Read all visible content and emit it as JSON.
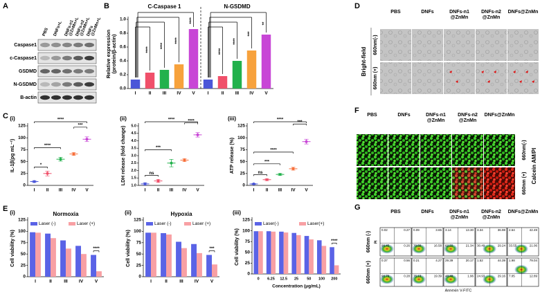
{
  "panel_labels": [
    "A",
    "B",
    "C",
    "D",
    "E",
    "F",
    "G"
  ],
  "blot": {
    "columns": [
      [
        "PBS"
      ],
      [
        "DNFs+L"
      ],
      [
        "DNFs-n1",
        "@ZnMn+L"
      ],
      [
        "DNFs-n2",
        "@ZnMn+L"
      ],
      [
        "DNFs",
        "@ZnMn+L"
      ]
    ],
    "rows": [
      "Caspase1",
      "c-Caspase1",
      "GSDMD",
      "N-GSDMD",
      "B-actin"
    ]
  },
  "chart_data": [
    {
      "type": "bar",
      "categories": [
        "I",
        "II",
        "III",
        "IV",
        "V"
      ],
      "colors": [
        "#4a56d8",
        "#f0506a",
        "#22b14c",
        "#f7a23c",
        "#c846d6"
      ],
      "ylabel": [
        "Relative expression",
        "(protein/β-actin)"
      ],
      "ylim": [
        0,
        1
      ],
      "yticks": [
        {
          "value": 0,
          "label": "0.0"
        },
        0.2,
        0.4,
        0.6,
        0.8,
        {
          "value": 1,
          "label": "1.0"
        }
      ],
      "groups": [
        {
          "title": "C-Caspase 1",
          "values": [
            0.13,
            0.23,
            0.27,
            0.35,
            0.86
          ],
          "annotations": [
            "****",
            "****",
            "****",
            "****"
          ]
        },
        {
          "title": "N-GSDMD",
          "values": [
            0.13,
            0.18,
            0.4,
            0.55,
            0.78
          ],
          "annotations": [
            "****",
            "****",
            "***",
            "**"
          ]
        }
      ]
    },
    {
      "type": "dot",
      "sublabel": "(i)",
      "ylabel": "IL-1β(pg mL⁻¹)",
      "categories": [
        "I",
        "II",
        "III",
        "IV",
        "V"
      ],
      "colors": [
        "#4a56d8",
        "#f0506a",
        "#22b14c",
        "#f7703c",
        "#c846d6"
      ],
      "values": [
        8,
        25,
        55,
        66,
        97
      ],
      "errors": [
        2,
        5,
        4,
        3,
        5
      ],
      "ylim": [
        0,
        125
      ],
      "yticks": [
        0,
        25,
        50,
        75,
        100,
        125
      ],
      "annotations": [
        "*",
        "****",
        "****",
        "***"
      ]
    },
    {
      "type": "dot",
      "sublabel": "(ii)",
      "ylabel": "LDH release (fold change)",
      "categories": [
        "I",
        "II",
        "III",
        "IV",
        "V"
      ],
      "colors": [
        "#4a56d8",
        "#f0506a",
        "#22b14c",
        "#f7703c",
        "#c846d6"
      ],
      "values": [
        1.1,
        1.3,
        2.5,
        2.7,
        4.4
      ],
      "errors": [
        0.08,
        0.1,
        0.25,
        0.1,
        0.15
      ],
      "ylim": [
        1,
        5
      ],
      "yticks": [
        {
          "value": 1,
          "label": "1.0"
        },
        1.5,
        {
          "value": 2,
          "label": "2.0"
        },
        2.5,
        {
          "value": 3,
          "label": "3.0"
        },
        3.5,
        {
          "value": 4,
          "label": "4.0"
        },
        4.5,
        {
          "value": 5,
          "label": "5.0"
        }
      ],
      "annotations": [
        "ns",
        "***",
        "****",
        "****"
      ]
    },
    {
      "type": "dot",
      "sublabel": "(iii)",
      "ylabel": "ATP release (%)",
      "categories": [
        "I",
        "II",
        "III",
        "IV",
        "V"
      ],
      "colors": [
        "#4a56d8",
        "#f0506a",
        "#22b14c",
        "#f7703c",
        "#c846d6"
      ],
      "values": [
        3,
        12,
        23,
        35,
        92
      ],
      "errors": [
        1,
        2,
        2,
        3,
        5
      ],
      "ylim": [
        0,
        125
      ],
      "yticks": [
        0,
        25,
        50,
        75,
        100,
        125
      ],
      "annotations": [
        "ns",
        "***",
        "****",
        "****",
        "***"
      ]
    },
    {
      "type": "grouped_bar",
      "sublabel": "(i)",
      "title": "Normoxia",
      "ylabel": "Cell viability (%)",
      "categories": [
        "I",
        "II",
        "III",
        "IV",
        "V"
      ],
      "series": [
        {
          "name": "Laser (-)",
          "color": "#5a63e6",
          "values": [
            98,
            95,
            80,
            68,
            48
          ]
        },
        {
          "name": "Laser (+)",
          "color": "#f8a0a4",
          "values": [
            97,
            85,
            62,
            50,
            12
          ]
        }
      ],
      "ylim": [
        0,
        125
      ],
      "yticks": [
        0,
        25,
        50,
        75,
        100,
        125
      ],
      "annotations": [
        "****"
      ]
    },
    {
      "type": "grouped_bar",
      "sublabel": "(ii)",
      "title": "Hypoxia",
      "ylabel": "Cell viability (%)",
      "categories": [
        "I",
        "II",
        "III",
        "IV",
        "V"
      ],
      "series": [
        {
          "name": "Laser (-)",
          "color": "#5a63e6",
          "values": [
            97,
            96,
            77,
            72,
            48
          ]
        },
        {
          "name": "Laser (+)",
          "color": "#f8a0a4",
          "values": [
            97,
            93,
            63,
            52,
            27
          ]
        }
      ],
      "ylim": [
        0,
        125
      ],
      "yticks": [
        0,
        25,
        50,
        75,
        100,
        125
      ],
      "annotations": [
        "***"
      ]
    },
    {
      "type": "grouped_bar",
      "sublabel": "(iii)",
      "ylabel": "Cell viability (%)",
      "xlabel": "Concentration (μg/mL)",
      "categories": [
        "0",
        "6.25",
        "12.5",
        "25",
        "50",
        "100",
        "200"
      ],
      "series": [
        {
          "name": "Laser(-)",
          "color": "#5a63e6",
          "values": [
            99,
            99,
            98,
            95,
            88,
            78,
            62
          ]
        },
        {
          "name": "Laser(+)",
          "color": "#f8a0a4",
          "values": [
            99,
            98,
            96,
            90,
            80,
            65,
            20
          ]
        }
      ],
      "ylim": [
        0,
        125
      ],
      "yticks": [
        0,
        25,
        50,
        75,
        100,
        125
      ],
      "annotations": [
        "****"
      ]
    }
  ],
  "bright_field": {
    "side_label": "Bright-field",
    "rows": [
      "660nm(-)",
      "660nm (+)"
    ],
    "columns": [
      [
        "PBS"
      ],
      [
        "DNFs"
      ],
      [
        "DNFs-n1",
        "@ZnMn"
      ],
      [
        "DNFs-n2",
        "@ZnMn"
      ],
      [
        "DNFs@ZnMn"
      ]
    ]
  },
  "calcein": {
    "side_label": "Calcein AM/PI",
    "rows": [
      "660nm(-)",
      "660nm (+)"
    ],
    "columns": [
      [
        "PBS"
      ],
      [
        "DNFs"
      ],
      [
        "DNFs-n1",
        "@ZnMn"
      ],
      [
        "DNFs-n2",
        "@ZnMn"
      ],
      [
        "DNFs@ZnMn"
      ]
    ]
  },
  "flow": {
    "columns": [
      [
        "PBS"
      ],
      [
        "DNFs"
      ],
      [
        "DNFs-n1",
        "@ZnMn"
      ],
      [
        "DNFs-n2",
        "@ZnMn"
      ],
      [
        "DNFs@ZnMn"
      ]
    ],
    "rows": [
      "660nm (-)",
      "660nm (+)"
    ],
    "y_label": "PI",
    "x_label": "Annexin V-FITC",
    "quadrants": [
      [
        [
          "0.02",
          "0.27",
          "99.45",
          "0.26"
        ],
        [
          "0.09",
          "3.65",
          "79.60",
          "16.58"
        ],
        [
          "3.14",
          "13.30",
          "62.22",
          "21.34"
        ],
        [
          "3.34",
          "36.98",
          "30.49",
          "29.24"
        ],
        [
          "2.64",
          "42.49",
          "33.55",
          "21.06"
        ]
      ],
      [
        [
          "0.37",
          "0.56",
          "98.79",
          "0.28"
        ],
        [
          "0.21",
          "4.27",
          "75.13",
          "19.39"
        ],
        [
          "29.39",
          "20.17",
          "48.48",
          "1.96"
        ],
        [
          "1.52",
          "44.39",
          "24.93",
          "29.16"
        ],
        [
          "1.98",
          "79.04",
          "7.05",
          "12.89"
        ]
      ]
    ]
  }
}
